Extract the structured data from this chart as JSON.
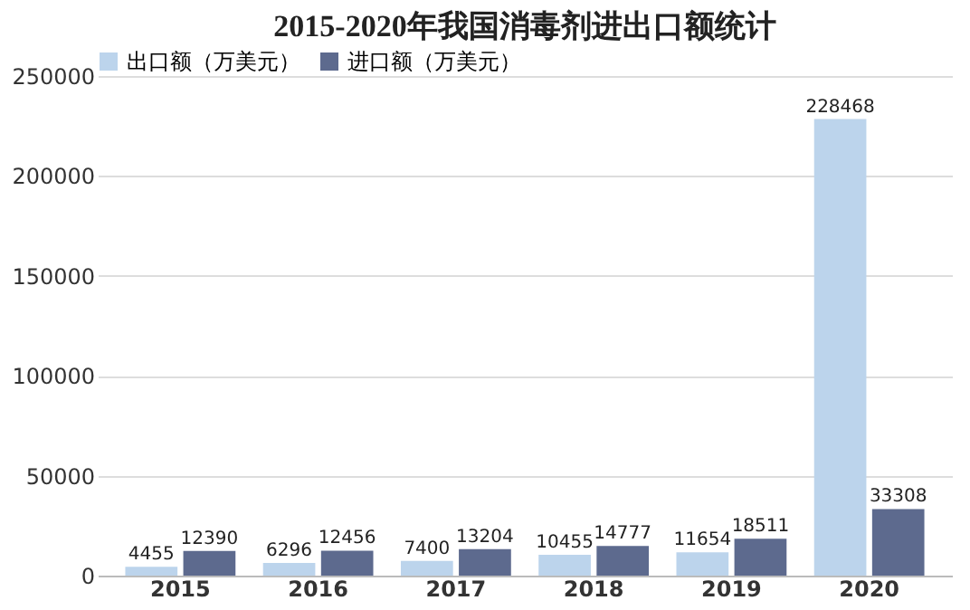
{
  "chart_data": {
    "type": "bar",
    "title": "2015-2020年我国消毒剂进出口额统计",
    "categories": [
      "2015",
      "2016",
      "2017",
      "2018",
      "2019",
      "2020"
    ],
    "series": [
      {
        "name": "出口额（万美元）",
        "color": "#bcd4ec",
        "values": [
          4455,
          6296,
          7400,
          10455,
          11654,
          228468
        ]
      },
      {
        "name": "进口额（万美元）",
        "color": "#5d6a8e",
        "values": [
          12390,
          12456,
          13204,
          14777,
          18511,
          33308
        ]
      }
    ],
    "ylim": [
      0,
      250000
    ],
    "yticks": [
      0,
      50000,
      100000,
      150000,
      200000,
      250000
    ],
    "grid": "y",
    "legend": "top",
    "data_labels": true
  }
}
